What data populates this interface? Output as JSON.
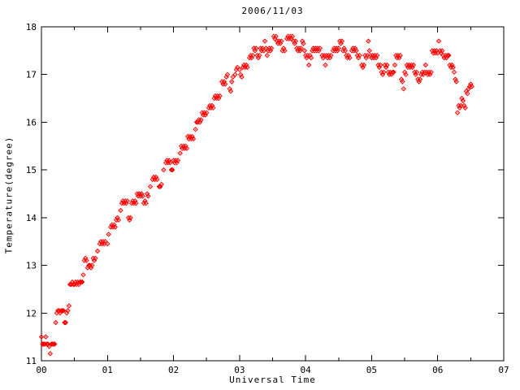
{
  "chart_data": {
    "type": "scatter",
    "title": "2006/11/03",
    "xlabel": "Universal Time",
    "ylabel": "Temperature(degree)",
    "xlim": [
      0,
      7
    ],
    "ylim": [
      11,
      18
    ],
    "grid": false,
    "legend": "none",
    "background_color": "#ffffff",
    "axis_color": "#000000",
    "x_ticks": {
      "values": [
        0,
        1,
        2,
        3,
        4,
        5,
        6,
        7
      ],
      "labels": [
        "00",
        "01",
        "02",
        "03",
        "04",
        "05",
        "06",
        "07"
      ]
    },
    "x_minor_ticks": [
      0.5,
      1.5,
      2.5,
      3.5,
      4.5,
      5.5,
      6.5
    ],
    "y_ticks": {
      "values": [
        11,
        12,
        13,
        14,
        15,
        16,
        17,
        18
      ],
      "labels": [
        "11",
        "12",
        "13",
        "14",
        "15",
        "16",
        "17",
        "18"
      ]
    },
    "marker": {
      "shape": "open-diamond-with-dot",
      "color": "#ff0000",
      "size": 5
    },
    "points": [
      [
        0.0,
        11.5
      ],
      [
        0.017,
        11.35
      ],
      [
        0.033,
        11.35
      ],
      [
        0.05,
        11.35
      ],
      [
        0.067,
        11.5
      ],
      [
        0.083,
        11.35
      ],
      [
        0.1,
        11.35
      ],
      [
        0.117,
        11.3
      ],
      [
        0.133,
        11.15
      ],
      [
        0.15,
        11.35
      ],
      [
        0.167,
        11.35
      ],
      [
        0.183,
        11.35
      ],
      [
        0.2,
        11.35
      ],
      [
        0.217,
        11.8
      ],
      [
        0.233,
        12.0
      ],
      [
        0.25,
        12.05
      ],
      [
        0.267,
        12.05
      ],
      [
        0.283,
        12.0
      ],
      [
        0.3,
        12.05
      ],
      [
        0.317,
        12.05
      ],
      [
        0.333,
        12.05
      ],
      [
        0.35,
        11.8
      ],
      [
        0.367,
        11.8
      ],
      [
        0.383,
        12.0
      ],
      [
        0.4,
        12.05
      ],
      [
        0.417,
        12.15
      ],
      [
        0.433,
        12.6
      ],
      [
        0.45,
        12.6
      ],
      [
        0.467,
        12.65
      ],
      [
        0.483,
        12.6
      ],
      [
        0.5,
        12.6
      ],
      [
        0.517,
        12.65
      ],
      [
        0.533,
        12.6
      ],
      [
        0.55,
        12.65
      ],
      [
        0.567,
        12.6
      ],
      [
        0.583,
        12.65
      ],
      [
        0.6,
        12.65
      ],
      [
        0.617,
        12.65
      ],
      [
        0.633,
        12.8
      ],
      [
        0.65,
        13.1
      ],
      [
        0.667,
        13.15
      ],
      [
        0.683,
        13.1
      ],
      [
        0.7,
        12.95
      ],
      [
        0.717,
        13.0
      ],
      [
        0.733,
        13.0
      ],
      [
        0.75,
        12.95
      ],
      [
        0.767,
        13.0
      ],
      [
        0.783,
        13.15
      ],
      [
        0.8,
        13.1
      ],
      [
        0.817,
        13.15
      ],
      [
        0.85,
        13.3
      ],
      [
        0.883,
        13.45
      ],
      [
        0.9,
        13.5
      ],
      [
        0.917,
        13.45
      ],
      [
        0.933,
        13.5
      ],
      [
        0.95,
        13.45
      ],
      [
        0.967,
        13.5
      ],
      [
        1.0,
        13.45
      ],
      [
        1.017,
        13.65
      ],
      [
        1.05,
        13.8
      ],
      [
        1.067,
        13.85
      ],
      [
        1.083,
        13.8
      ],
      [
        1.1,
        13.85
      ],
      [
        1.117,
        13.8
      ],
      [
        1.133,
        13.95
      ],
      [
        1.15,
        14.0
      ],
      [
        1.167,
        13.95
      ],
      [
        1.2,
        14.15
      ],
      [
        1.217,
        14.3
      ],
      [
        1.233,
        14.35
      ],
      [
        1.25,
        14.3
      ],
      [
        1.267,
        14.35
      ],
      [
        1.283,
        14.3
      ],
      [
        1.3,
        14.35
      ],
      [
        1.317,
        14.0
      ],
      [
        1.333,
        13.95
      ],
      [
        1.35,
        14.0
      ],
      [
        1.367,
        14.3
      ],
      [
        1.383,
        14.35
      ],
      [
        1.4,
        14.3
      ],
      [
        1.417,
        14.35
      ],
      [
        1.433,
        14.3
      ],
      [
        1.45,
        14.5
      ],
      [
        1.467,
        14.45
      ],
      [
        1.483,
        14.5
      ],
      [
        1.5,
        14.45
      ],
      [
        1.517,
        14.5
      ],
      [
        1.533,
        14.45
      ],
      [
        1.55,
        14.3
      ],
      [
        1.567,
        14.35
      ],
      [
        1.583,
        14.3
      ],
      [
        1.6,
        14.5
      ],
      [
        1.617,
        14.45
      ],
      [
        1.65,
        14.65
      ],
      [
        1.683,
        14.8
      ],
      [
        1.7,
        14.85
      ],
      [
        1.717,
        14.8
      ],
      [
        1.733,
        14.85
      ],
      [
        1.75,
        14.8
      ],
      [
        1.783,
        14.65
      ],
      [
        1.8,
        14.65
      ],
      [
        1.817,
        14.7
      ],
      [
        1.85,
        15.0
      ],
      [
        1.883,
        15.15
      ],
      [
        1.9,
        15.2
      ],
      [
        1.917,
        15.15
      ],
      [
        1.933,
        15.2
      ],
      [
        1.95,
        15.15
      ],
      [
        1.967,
        15.0
      ],
      [
        1.983,
        15.0
      ],
      [
        2.0,
        15.2
      ],
      [
        2.017,
        15.15
      ],
      [
        2.033,
        15.2
      ],
      [
        2.05,
        15.15
      ],
      [
        2.067,
        15.2
      ],
      [
        2.1,
        15.35
      ],
      [
        2.117,
        15.5
      ],
      [
        2.133,
        15.45
      ],
      [
        2.15,
        15.5
      ],
      [
        2.167,
        15.45
      ],
      [
        2.183,
        15.5
      ],
      [
        2.2,
        15.45
      ],
      [
        2.217,
        15.7
      ],
      [
        2.233,
        15.65
      ],
      [
        2.25,
        15.7
      ],
      [
        2.267,
        15.65
      ],
      [
        2.283,
        15.7
      ],
      [
        2.3,
        15.65
      ],
      [
        2.333,
        15.85
      ],
      [
        2.35,
        16.0
      ],
      [
        2.367,
        16.0
      ],
      [
        2.383,
        16.05
      ],
      [
        2.4,
        16.0
      ],
      [
        2.417,
        16.05
      ],
      [
        2.433,
        16.2
      ],
      [
        2.45,
        16.15
      ],
      [
        2.467,
        16.2
      ],
      [
        2.483,
        16.15
      ],
      [
        2.5,
        16.2
      ],
      [
        2.533,
        16.3
      ],
      [
        2.55,
        16.35
      ],
      [
        2.567,
        16.3
      ],
      [
        2.583,
        16.35
      ],
      [
        2.6,
        16.3
      ],
      [
        2.617,
        16.5
      ],
      [
        2.633,
        16.55
      ],
      [
        2.65,
        16.5
      ],
      [
        2.667,
        16.55
      ],
      [
        2.683,
        16.5
      ],
      [
        2.7,
        16.55
      ],
      [
        2.733,
        16.85
      ],
      [
        2.75,
        16.8
      ],
      [
        2.767,
        16.85
      ],
      [
        2.783,
        16.8
      ],
      [
        2.8,
        16.95
      ],
      [
        2.817,
        17.0
      ],
      [
        2.85,
        16.7
      ],
      [
        2.867,
        16.65
      ],
      [
        2.883,
        16.85
      ],
      [
        2.9,
        16.95
      ],
      [
        2.933,
        17.0
      ],
      [
        2.95,
        17.1
      ],
      [
        2.967,
        17.15
      ],
      [
        3.0,
        17.1
      ],
      [
        3.017,
        17.0
      ],
      [
        3.033,
        16.95
      ],
      [
        3.05,
        17.15
      ],
      [
        3.067,
        17.2
      ],
      [
        3.083,
        17.15
      ],
      [
        3.1,
        17.2
      ],
      [
        3.117,
        17.15
      ],
      [
        3.15,
        17.35
      ],
      [
        3.167,
        17.4
      ],
      [
        3.183,
        17.35
      ],
      [
        3.2,
        17.4
      ],
      [
        3.217,
        17.55
      ],
      [
        3.233,
        17.5
      ],
      [
        3.25,
        17.55
      ],
      [
        3.267,
        17.4
      ],
      [
        3.283,
        17.35
      ],
      [
        3.3,
        17.4
      ],
      [
        3.317,
        17.55
      ],
      [
        3.333,
        17.5
      ],
      [
        3.35,
        17.55
      ],
      [
        3.367,
        17.5
      ],
      [
        3.383,
        17.7
      ],
      [
        3.4,
        17.55
      ],
      [
        3.417,
        17.4
      ],
      [
        3.433,
        17.5
      ],
      [
        3.45,
        17.55
      ],
      [
        3.467,
        17.5
      ],
      [
        3.483,
        17.55
      ],
      [
        3.517,
        17.8
      ],
      [
        3.533,
        17.75
      ],
      [
        3.55,
        17.8
      ],
      [
        3.567,
        17.7
      ],
      [
        3.583,
        17.65
      ],
      [
        3.6,
        17.7
      ],
      [
        3.617,
        17.65
      ],
      [
        3.633,
        17.7
      ],
      [
        3.65,
        17.5
      ],
      [
        3.667,
        17.55
      ],
      [
        3.683,
        17.5
      ],
      [
        3.717,
        17.75
      ],
      [
        3.733,
        17.8
      ],
      [
        3.75,
        17.75
      ],
      [
        3.767,
        17.8
      ],
      [
        3.783,
        17.75
      ],
      [
        3.8,
        17.8
      ],
      [
        3.817,
        17.7
      ],
      [
        3.833,
        17.65
      ],
      [
        3.85,
        17.7
      ],
      [
        3.867,
        17.55
      ],
      [
        3.883,
        17.5
      ],
      [
        3.9,
        17.55
      ],
      [
        3.917,
        17.5
      ],
      [
        3.933,
        17.55
      ],
      [
        3.95,
        17.7
      ],
      [
        3.967,
        17.65
      ],
      [
        3.983,
        17.5
      ],
      [
        4.0,
        17.4
      ],
      [
        4.017,
        17.35
      ],
      [
        4.033,
        17.4
      ],
      [
        4.05,
        17.2
      ],
      [
        4.067,
        17.4
      ],
      [
        4.083,
        17.35
      ],
      [
        4.1,
        17.5
      ],
      [
        4.117,
        17.55
      ],
      [
        4.133,
        17.5
      ],
      [
        4.15,
        17.55
      ],
      [
        4.167,
        17.5
      ],
      [
        4.183,
        17.55
      ],
      [
        4.2,
        17.5
      ],
      [
        4.217,
        17.55
      ],
      [
        4.25,
        17.4
      ],
      [
        4.267,
        17.35
      ],
      [
        4.283,
        17.4
      ],
      [
        4.3,
        17.2
      ],
      [
        4.317,
        17.4
      ],
      [
        4.333,
        17.35
      ],
      [
        4.35,
        17.4
      ],
      [
        4.367,
        17.35
      ],
      [
        4.383,
        17.4
      ],
      [
        4.417,
        17.5
      ],
      [
        4.433,
        17.55
      ],
      [
        4.45,
        17.5
      ],
      [
        4.467,
        17.55
      ],
      [
        4.483,
        17.5
      ],
      [
        4.5,
        17.55
      ],
      [
        4.517,
        17.7
      ],
      [
        4.533,
        17.65
      ],
      [
        4.55,
        17.7
      ],
      [
        4.567,
        17.5
      ],
      [
        4.583,
        17.55
      ],
      [
        4.6,
        17.5
      ],
      [
        4.617,
        17.4
      ],
      [
        4.633,
        17.35
      ],
      [
        4.65,
        17.4
      ],
      [
        4.667,
        17.35
      ],
      [
        4.7,
        17.5
      ],
      [
        4.717,
        17.55
      ],
      [
        4.733,
        17.5
      ],
      [
        4.75,
        17.55
      ],
      [
        4.767,
        17.5
      ],
      [
        4.783,
        17.4
      ],
      [
        4.8,
        17.35
      ],
      [
        4.817,
        17.4
      ],
      [
        4.85,
        17.2
      ],
      [
        4.867,
        17.15
      ],
      [
        4.883,
        17.2
      ],
      [
        4.9,
        17.4
      ],
      [
        4.917,
        17.35
      ],
      [
        4.933,
        17.4
      ],
      [
        4.95,
        17.7
      ],
      [
        4.967,
        17.5
      ],
      [
        4.983,
        17.4
      ],
      [
        5.0,
        17.35
      ],
      [
        5.017,
        17.4
      ],
      [
        5.033,
        17.35
      ],
      [
        5.05,
        17.4
      ],
      [
        5.067,
        17.35
      ],
      [
        5.083,
        17.4
      ],
      [
        5.1,
        17.2
      ],
      [
        5.117,
        17.15
      ],
      [
        5.133,
        17.2
      ],
      [
        5.15,
        17.05
      ],
      [
        5.167,
        17.0
      ],
      [
        5.183,
        17.05
      ],
      [
        5.2,
        17.2
      ],
      [
        5.217,
        17.15
      ],
      [
        5.233,
        17.2
      ],
      [
        5.25,
        17.05
      ],
      [
        5.267,
        17.0
      ],
      [
        5.283,
        17.05
      ],
      [
        5.3,
        17.0
      ],
      [
        5.317,
        17.05
      ],
      [
        5.333,
        17.05
      ],
      [
        5.35,
        17.2
      ],
      [
        5.367,
        17.4
      ],
      [
        5.383,
        17.35
      ],
      [
        5.4,
        17.4
      ],
      [
        5.417,
        17.35
      ],
      [
        5.433,
        17.4
      ],
      [
        5.45,
        16.9
      ],
      [
        5.467,
        16.85
      ],
      [
        5.483,
        16.7
      ],
      [
        5.5,
        17.05
      ],
      [
        5.517,
        17.0
      ],
      [
        5.533,
        17.2
      ],
      [
        5.55,
        17.15
      ],
      [
        5.567,
        17.2
      ],
      [
        5.583,
        17.15
      ],
      [
        5.6,
        17.2
      ],
      [
        5.617,
        17.15
      ],
      [
        5.633,
        17.2
      ],
      [
        5.65,
        17.05
      ],
      [
        5.667,
        17.0
      ],
      [
        5.683,
        17.05
      ],
      [
        5.7,
        16.9
      ],
      [
        5.717,
        16.85
      ],
      [
        5.733,
        16.9
      ],
      [
        5.75,
        17.0
      ],
      [
        5.767,
        17.05
      ],
      [
        5.783,
        17.0
      ],
      [
        5.8,
        17.05
      ],
      [
        5.817,
        17.2
      ],
      [
        5.833,
        17.05
      ],
      [
        5.85,
        17.0
      ],
      [
        5.867,
        17.05
      ],
      [
        5.883,
        17.0
      ],
      [
        5.9,
        17.05
      ],
      [
        5.917,
        17.5
      ],
      [
        5.933,
        17.45
      ],
      [
        5.95,
        17.5
      ],
      [
        5.967,
        17.45
      ],
      [
        5.983,
        17.5
      ],
      [
        6.0,
        17.45
      ],
      [
        6.017,
        17.7
      ],
      [
        6.033,
        17.5
      ],
      [
        6.05,
        17.45
      ],
      [
        6.067,
        17.5
      ],
      [
        6.083,
        17.4
      ],
      [
        6.1,
        17.35
      ],
      [
        6.117,
        17.4
      ],
      [
        6.133,
        17.35
      ],
      [
        6.15,
        17.4
      ],
      [
        6.167,
        17.4
      ],
      [
        6.183,
        17.2
      ],
      [
        6.2,
        17.15
      ],
      [
        6.217,
        17.2
      ],
      [
        6.233,
        17.15
      ],
      [
        6.25,
        17.05
      ],
      [
        6.267,
        16.9
      ],
      [
        6.283,
        16.85
      ],
      [
        6.3,
        16.2
      ],
      [
        6.317,
        16.35
      ],
      [
        6.333,
        16.3
      ],
      [
        6.35,
        16.35
      ],
      [
        6.367,
        16.5
      ],
      [
        6.383,
        16.45
      ],
      [
        6.4,
        16.35
      ],
      [
        6.417,
        16.3
      ],
      [
        6.433,
        16.65
      ],
      [
        6.45,
        16.6
      ],
      [
        6.467,
        16.7
      ],
      [
        6.483,
        16.75
      ],
      [
        6.5,
        16.8
      ],
      [
        6.517,
        16.75
      ]
    ]
  }
}
